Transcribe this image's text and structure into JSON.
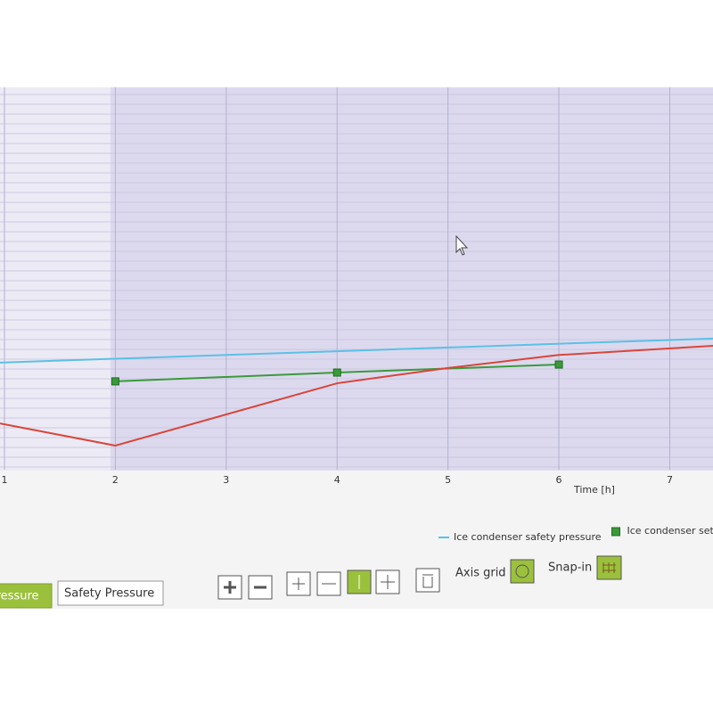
{
  "chart_data": {
    "type": "line",
    "x_label": "Time [h]",
    "xlim": [
      0.96,
      7.39
    ],
    "ylim": [
      0,
      10
    ],
    "xticks": [
      1,
      2,
      3,
      4,
      5,
      6,
      7
    ],
    "grid": true,
    "series": [
      {
        "name": "Ice condenser safety pressure",
        "color": "#5bc0e6",
        "x": [
          0.96,
          7.39
        ],
        "values": [
          2.8,
          3.43
        ],
        "marker": false
      },
      {
        "name": "Ice condenser set",
        "color": "#3a9a3a",
        "x": [
          2,
          4,
          6
        ],
        "values": [
          2.31,
          2.54,
          2.75
        ],
        "marker": true
      },
      {
        "color": "#d9463a",
        "x": [
          0.96,
          2,
          4,
          5,
          6,
          7.39
        ],
        "values": [
          1.21,
          0.63,
          2.26,
          2.66,
          3.0,
          3.24
        ],
        "marker": false
      }
    ]
  },
  "tabs": [
    "Pressure",
    "Safety Pressure"
  ],
  "toolbar": {
    "axis_grid": "Axis grid",
    "snap_in": "Snap-in"
  }
}
